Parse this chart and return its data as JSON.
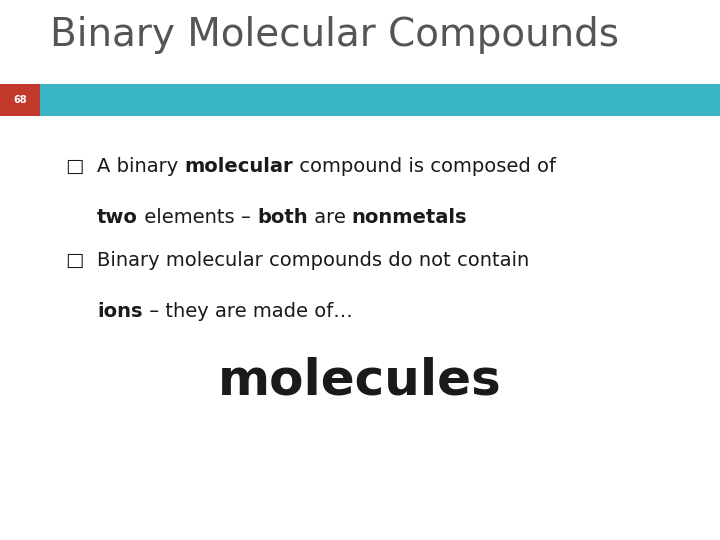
{
  "title": "Binary Molecular Compounds",
  "slide_number": "68",
  "bg_color": "#ffffff",
  "title_color": "#555555",
  "title_fontsize": 28,
  "bar_color_red": "#c0392b",
  "bar_color_teal": "#3ab5c6",
  "big_word": "molecules",
  "bullet_fontsize": 14,
  "big_word_fontsize": 36,
  "text_color": "#1a1a1a",
  "slide_num_color": "#ffffff",
  "slide_num_fontsize": 7
}
